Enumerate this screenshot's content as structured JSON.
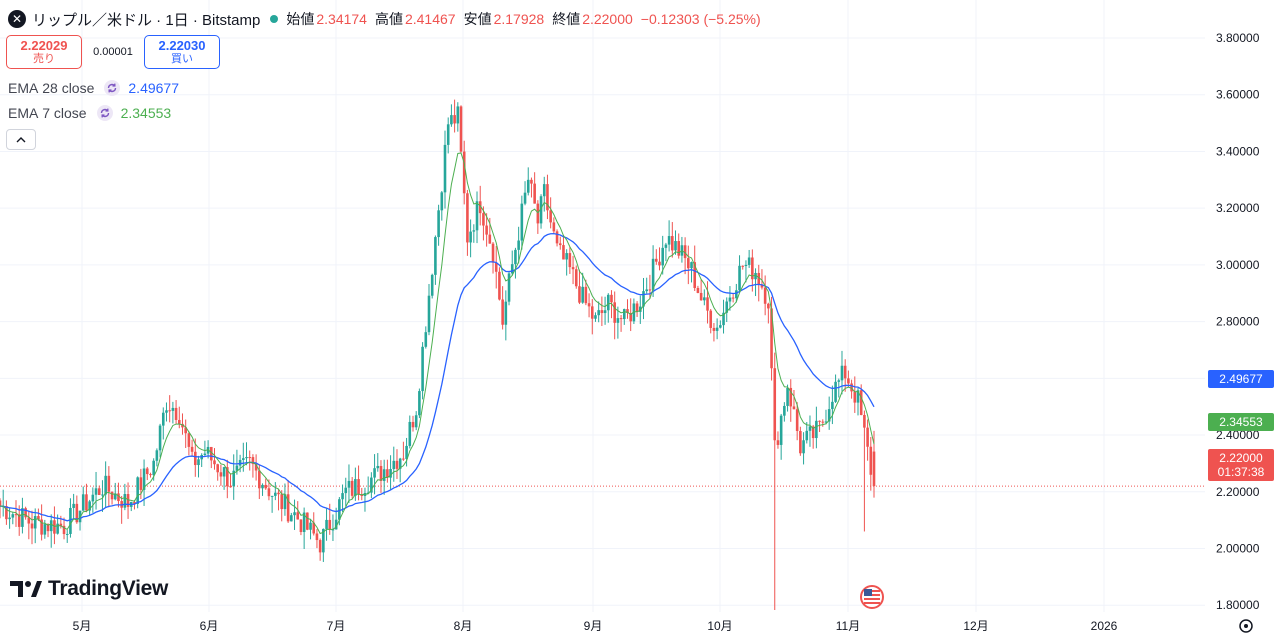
{
  "header": {
    "title": "リップル／米ドル · 1日 · Bitstamp",
    "open_label": "始値",
    "open": "2.34174",
    "high_label": "高値",
    "high": "2.41467",
    "low_label": "安値",
    "low": "2.17928",
    "close_label": "終値",
    "close": "2.22000",
    "change": "−0.12303 (−5.25%)"
  },
  "trade": {
    "sell_price": "2.22029",
    "sell_label": "売り",
    "spread": "0.00001",
    "buy_price": "2.22030",
    "buy_label": "買い"
  },
  "indicators": [
    {
      "name": "EMA",
      "params": "28 close",
      "value": "2.49677",
      "color": "#2962ff"
    },
    {
      "name": "EMA",
      "params": "7 close",
      "value": "2.34553",
      "color": "#4caf50"
    }
  ],
  "price_tags": {
    "ema28": "2.49677",
    "ema7": "2.34553",
    "last": "2.22000",
    "countdown": "01:37:38"
  },
  "brand": "TradingView",
  "colors": {
    "up": "#26a69a",
    "down": "#ef5350",
    "ema28": "#2962ff",
    "ema7": "#4caf50"
  },
  "chart_data": {
    "type": "candlestick",
    "interval": "1日",
    "y_ticks": [
      "3.80000",
      "3.60000",
      "3.40000",
      "3.20000",
      "3.00000",
      "2.80000",
      "2.60000",
      "2.40000",
      "2.20000",
      "2.00000",
      "1.80000"
    ],
    "y_range": [
      1.7,
      3.8
    ],
    "x_labels": [
      "5月",
      "6月",
      "7月",
      "8月",
      "9月",
      "10月",
      "11月",
      "12月",
      "2026"
    ],
    "ohlc_summary": [
      {
        "month": "4月",
        "open": 2.15,
        "high": 2.24,
        "low": 2.02,
        "close": 2.09
      },
      {
        "month": "5月",
        "open": 2.09,
        "high": 2.65,
        "low": 2.08,
        "close": 2.19
      },
      {
        "month": "6月",
        "open": 2.19,
        "high": 2.35,
        "low": 1.91,
        "close": 2.23
      },
      {
        "month": "7月",
        "open": 2.23,
        "high": 3.66,
        "low": 2.2,
        "close": 3.05
      },
      {
        "month": "8月",
        "open": 3.05,
        "high": 3.38,
        "low": 2.73,
        "close": 2.8
      },
      {
        "month": "9月",
        "open": 2.8,
        "high": 3.18,
        "low": 2.7,
        "close": 3.0
      },
      {
        "month": "10月",
        "open": 3.0,
        "high": 3.1,
        "low": 1.7,
        "close": 2.56
      },
      {
        "month": "11月",
        "open": 2.56,
        "high": 2.7,
        "low": 2.06,
        "close": 2.22
      }
    ],
    "last_close": 2.22,
    "grid": true
  }
}
